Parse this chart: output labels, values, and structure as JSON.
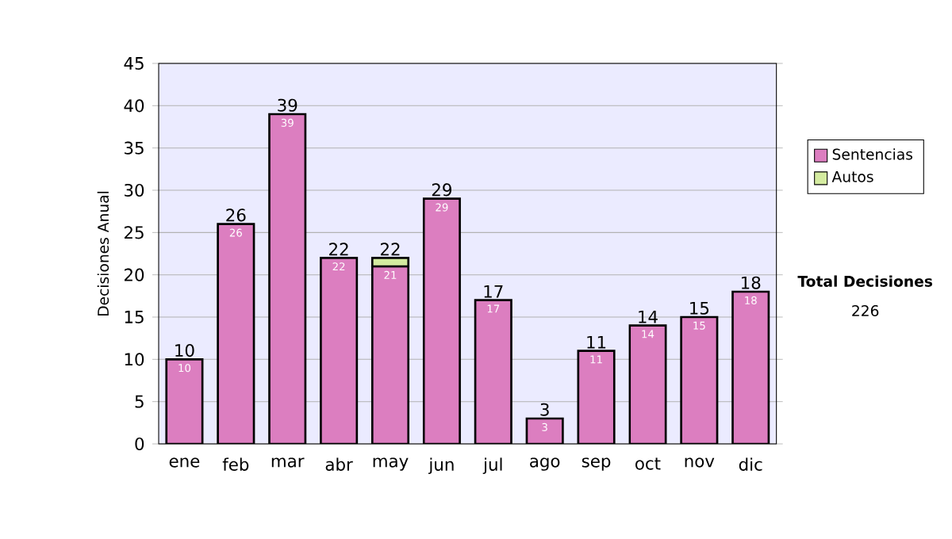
{
  "chart_data": {
    "type": "bar",
    "stacked": true,
    "ylabel": "Decisiones Anual",
    "categories": [
      "ene",
      "feb",
      "mar",
      "abr",
      "may",
      "jun",
      "jul",
      "ago",
      "sep",
      "oct",
      "nov",
      "dic"
    ],
    "series": [
      {
        "name": "Sentencias",
        "color": "#dc7ec0",
        "values": [
          10,
          26,
          39,
          22,
          21,
          29,
          17,
          3,
          11,
          14,
          15,
          18
        ],
        "value_labels": [
          "10",
          "26",
          "39",
          "22",
          "21",
          "29",
          "17",
          "3",
          "11",
          "14",
          "15",
          "18"
        ]
      },
      {
        "name": "Autos",
        "color": "#d4eba0",
        "values": [
          null,
          null,
          null,
          null,
          1,
          null,
          null,
          null,
          null,
          null,
          null,
          null
        ]
      }
    ],
    "totals": [
      "10",
      "26",
      "39",
      "22",
      "22",
      "29",
      "17",
      "3",
      "11",
      "14",
      "15",
      "18"
    ],
    "ylim": [
      0,
      45
    ],
    "yticks": [
      0,
      5,
      10,
      15,
      20,
      25,
      30,
      35,
      40,
      45
    ],
    "grid": "y",
    "legend": "right",
    "annotations": [
      "Total Decisiones",
      "226"
    ]
  }
}
